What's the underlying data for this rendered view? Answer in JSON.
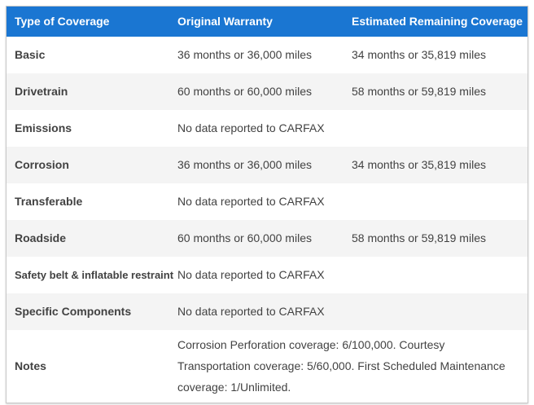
{
  "colors": {
    "header_bg": "#1a76d2",
    "header_text": "#ffffff",
    "row_bg": "#ffffff",
    "row_alt_bg": "#f4f4f4",
    "body_text": "#424242",
    "border": "#c9c9c9"
  },
  "table": {
    "headers": [
      "Type of Coverage",
      "Original Warranty",
      "Estimated Remaining Coverage"
    ],
    "rows": [
      {
        "type": "Basic",
        "original": "36 months or 36,000 miles",
        "remaining": "34 months or 35,819 miles",
        "span": false
      },
      {
        "type": "Drivetrain",
        "original": "60 months or 60,000 miles",
        "remaining": "58 months or 59,819 miles",
        "span": false
      },
      {
        "type": "Emissions",
        "original": "No data reported to CARFAX",
        "remaining": "",
        "span": false
      },
      {
        "type": "Corrosion",
        "original": "36 months or 36,000 miles",
        "remaining": "34 months or 35,819 miles",
        "span": false
      },
      {
        "type": "Transferable",
        "original": "No data reported to CARFAX",
        "remaining": "",
        "span": false
      },
      {
        "type": "Roadside",
        "original": "60 months or 60,000 miles",
        "remaining": "58 months or 59,819 miles",
        "span": false
      },
      {
        "type": "Safety belt & inflatable restraint",
        "original": "No data reported to CARFAX",
        "remaining": "",
        "span": false
      },
      {
        "type": "Specific Components",
        "original": "No data reported to CARFAX",
        "remaining": "",
        "span": false
      },
      {
        "type": "Notes",
        "original": "Corrosion Perforation coverage: 6/100,000. Courtesy Transportation coverage: 5/60,000. First Scheduled Maintenance coverage: 1/Unlimited.",
        "remaining": "",
        "span": true
      }
    ]
  }
}
